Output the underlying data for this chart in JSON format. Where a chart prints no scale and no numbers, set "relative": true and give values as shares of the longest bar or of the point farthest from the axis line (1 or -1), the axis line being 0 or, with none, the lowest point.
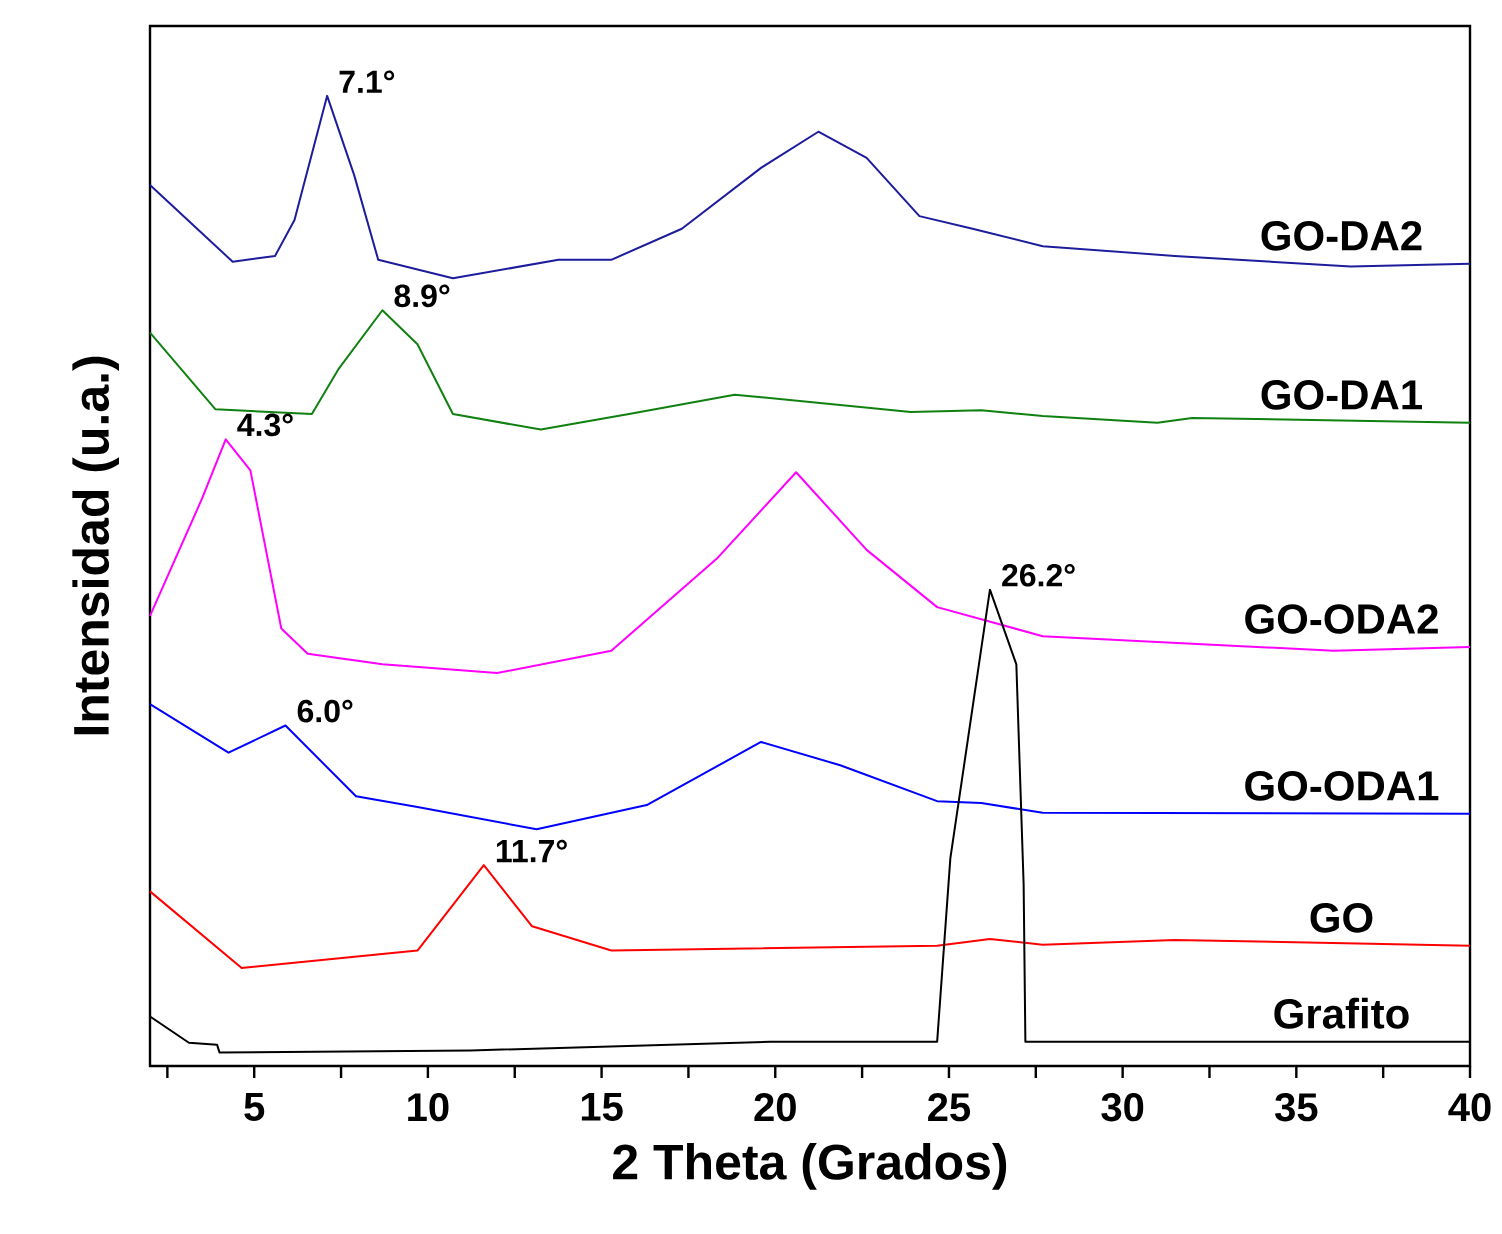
{
  "chart_data": {
    "type": "line",
    "relative": true,
    "xlabel": "2 Theta (Grados)",
    "ylabel": "Intensidad (u.a.)",
    "xlim": [
      2,
      40
    ],
    "xticks": [
      {
        "value": 2.5,
        "label": null
      },
      5,
      {
        "value": 7.5,
        "label": null
      },
      10,
      {
        "value": 12.5,
        "label": null
      },
      15,
      {
        "value": 17.5,
        "label": null
      },
      20,
      {
        "value": 22.5,
        "label": null
      },
      25,
      {
        "value": 27.5,
        "label": null
      },
      30,
      {
        "value": 32.5,
        "label": null
      },
      35,
      {
        "value": 37.5,
        "label": null
      },
      40
    ],
    "series": [
      {
        "name": "GO-DA2",
        "color": "#1c1c9c",
        "x": [
          2,
          4.38,
          5.6,
          6.16,
          7.1,
          7.88,
          8.57,
          10.72,
          13.76,
          15.28,
          17.31,
          19.6,
          21.24,
          22.63,
          24.15,
          25.68,
          27.7,
          31.5,
          36.57,
          40
        ],
        "values": [
          0.908,
          0.829,
          0.835,
          0.872,
          1.0,
          0.918,
          0.831,
          0.812,
          0.831,
          0.831,
          0.863,
          0.926,
          0.963,
          0.936,
          0.876,
          0.863,
          0.845,
          0.835,
          0.824,
          0.827
        ]
      },
      {
        "name": "GO-DA1",
        "color": "#108010",
        "x": [
          2,
          3.88,
          6.66,
          7.42,
          8.69,
          9.7,
          10.72,
          13.25,
          15.79,
          18.83,
          23.9,
          25.93,
          27.7,
          31,
          32,
          40
        ],
        "values": [
          0.756,
          0.677,
          0.672,
          0.718,
          0.779,
          0.744,
          0.672,
          0.656,
          0.672,
          0.692,
          0.674,
          0.676,
          0.67,
          0.663,
          0.668,
          0.663
        ]
      },
      {
        "name": "GO-ODA2",
        "color": "#ff00ff",
        "x": [
          2,
          3.5,
          4.18,
          4.89,
          5.78,
          6.54,
          8.69,
          11.99,
          15.28,
          18.32,
          20.6,
          22.63,
          24.66,
          27.7,
          36.07,
          40
        ],
        "values": [
          0.464,
          0.585,
          0.646,
          0.614,
          0.451,
          0.425,
          0.414,
          0.405,
          0.428,
          0.523,
          0.612,
          0.532,
          0.473,
          0.443,
          0.428,
          0.432
        ]
      },
      {
        "name": "GO-ODA1",
        "color": "#0000ff",
        "x": [
          2,
          4.26,
          5.9,
          7.93,
          9.7,
          13.13,
          16.3,
          19.59,
          21.87,
          24.66,
          25.93,
          27.7,
          40
        ],
        "values": [
          0.373,
          0.323,
          0.351,
          0.278,
          0.267,
          0.244,
          0.269,
          0.334,
          0.31,
          0.273,
          0.271,
          0.261,
          0.26
        ]
      },
      {
        "name": "GO",
        "color": "#ff0000",
        "x": [
          2,
          4.64,
          9.7,
          11.61,
          13,
          15.28,
          24.66,
          26.18,
          27.7,
          31.5,
          40
        ],
        "values": [
          0.18,
          0.101,
          0.119,
          0.207,
          0.144,
          0.119,
          0.124,
          0.131,
          0.125,
          0.13,
          0.124
        ]
      },
      {
        "name": "Grafito",
        "color": "#000000",
        "x": [
          2,
          3.12,
          3.93,
          4.0,
          11.23,
          19.85,
          24.66,
          25.04,
          26.18,
          26.94,
          27.15,
          27.2,
          40
        ],
        "values": [
          0.051,
          0.024,
          0.022,
          0.014,
          0.016,
          0.025,
          0.025,
          0.214,
          0.491,
          0.414,
          0.187,
          0.025,
          0.025
        ]
      }
    ],
    "annotations": [
      {
        "text": "7.1°",
        "x": 7.1,
        "y": 1.0
      },
      {
        "text": "8.9°",
        "x": 8.69,
        "y": 0.779
      },
      {
        "text": "4.3°",
        "x": 4.18,
        "y": 0.646
      },
      {
        "text": "26.2°",
        "x": 26.18,
        "y": 0.491
      },
      {
        "text": "6.0°",
        "x": 5.9,
        "y": 0.351
      },
      {
        "text": "11.7°",
        "x": 11.61,
        "y": 0.207
      }
    ]
  }
}
